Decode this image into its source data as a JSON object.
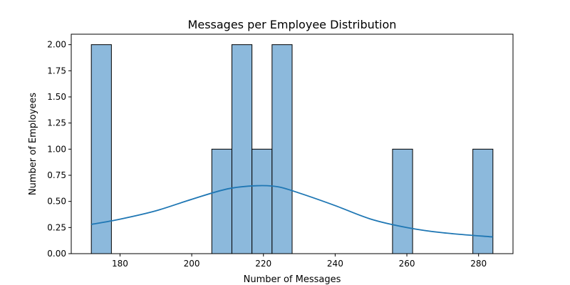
{
  "chart_data": {
    "type": "bar",
    "title": "Messages per Employee Distribution",
    "xlabel": "Number of Messages",
    "ylabel": "Number of Employees",
    "xlim": [
      166.4,
      289.6
    ],
    "ylim": [
      0,
      2.1
    ],
    "xticks": [
      180,
      200,
      220,
      240,
      260,
      280
    ],
    "yticks": [
      0.0,
      0.25,
      0.5,
      0.75,
      1.0,
      1.25,
      1.5,
      1.75,
      2.0
    ],
    "xtick_labels": [
      "180",
      "200",
      "220",
      "240",
      "260",
      "280"
    ],
    "ytick_labels": [
      "0.00",
      "0.25",
      "0.50",
      "0.75",
      "1.00",
      "1.25",
      "1.50",
      "1.75",
      "2.00"
    ],
    "bars": [
      {
        "x0": 172.0,
        "x1": 177.6,
        "count": 2
      },
      {
        "x0": 205.6,
        "x1": 211.2,
        "count": 1
      },
      {
        "x0": 211.2,
        "x1": 216.8,
        "count": 2
      },
      {
        "x0": 216.8,
        "x1": 222.4,
        "count": 1
      },
      {
        "x0": 222.4,
        "x1": 228.0,
        "count": 2
      },
      {
        "x0": 256.0,
        "x1": 261.6,
        "count": 1
      },
      {
        "x0": 278.4,
        "x1": 284.0,
        "count": 1
      }
    ],
    "kde": [
      [
        172,
        0.28
      ],
      [
        180,
        0.33
      ],
      [
        190,
        0.41
      ],
      [
        200,
        0.52
      ],
      [
        210,
        0.62
      ],
      [
        218,
        0.65
      ],
      [
        224,
        0.64
      ],
      [
        230,
        0.58
      ],
      [
        240,
        0.46
      ],
      [
        250,
        0.33
      ],
      [
        260,
        0.25
      ],
      [
        270,
        0.2
      ],
      [
        284,
        0.16
      ]
    ],
    "bar_color": "#8cb9dc",
    "bar_edge": "#000000",
    "kde_color": "#1f77b4",
    "grid": false
  }
}
